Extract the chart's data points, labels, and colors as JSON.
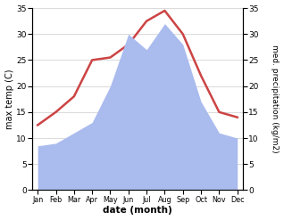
{
  "months": [
    "Jan",
    "Feb",
    "Mar",
    "Apr",
    "May",
    "Jun",
    "Jul",
    "Aug",
    "Sep",
    "Oct",
    "Nov",
    "Dec"
  ],
  "max_temp": [
    12.5,
    15.0,
    18.0,
    25.0,
    25.5,
    28.0,
    32.5,
    34.5,
    30.0,
    22.0,
    15.0,
    14.0
  ],
  "precipitation": [
    8.5,
    9.0,
    11.0,
    13.0,
    20.0,
    30.0,
    27.0,
    32.0,
    28.0,
    17.0,
    11.0,
    10.0
  ],
  "temp_color": "#cc4444",
  "precip_color": "#aabbee",
  "background_color": "#ffffff",
  "ylim_left": [
    0,
    35
  ],
  "ylim_right": [
    0,
    35
  ],
  "yticks_left": [
    0,
    5,
    10,
    15,
    20,
    25,
    30,
    35
  ],
  "yticks_right": [
    0,
    5,
    10,
    15,
    20,
    25,
    30,
    35
  ],
  "xlabel": "date (month)",
  "ylabel_left": "max temp (C)",
  "ylabel_right": "med. precipitation (kg/m2)"
}
